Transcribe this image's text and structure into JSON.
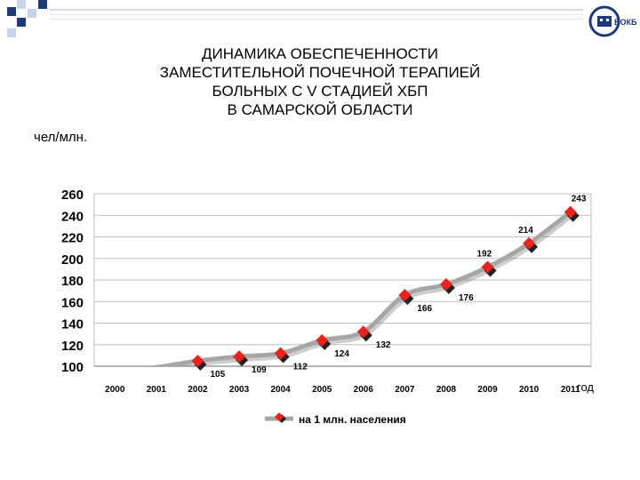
{
  "header": {
    "title_lines": [
      "ДИНАМИКА ОБЕСПЕЧЕННОСТИ",
      "ЗАМЕСТИТЕЛЬНОЙ ПОЧЕЧНОЙ ТЕРАПИЕЙ",
      "БОЛЬНЫХ С V СТАДИЕЙ ХБП",
      "В САМАРСКОЙ ОБЛАСТИ"
    ],
    "logo_text": "БОКБ"
  },
  "colors": {
    "line": "#a6a6a6",
    "marker": "#e8231d",
    "marker_shadow": "#222222",
    "grid": "#bfbfbf",
    "deco_blue": "#1f3a7a",
    "deco_light": "#c9d3ea"
  },
  "chart_data": {
    "type": "line",
    "title": "ДИНАМИКА ОБЕСПЕЧЕННОСТИ ЗАМЕСТИТЕЛЬНОЙ ПОЧЕЧНОЙ ТЕРАПИЕЙ БОЛЬНЫХ С V СТАДИЕЙ ХБП В САМАРСКОЙ ОБЛАСТИ",
    "ylabel": "чел/млн.",
    "xlabel": "год",
    "categories": [
      "2000",
      "2001",
      "2002",
      "2003",
      "2004",
      "2005",
      "2006",
      "2007",
      "2008",
      "2009",
      "2010",
      "2011"
    ],
    "ylim": [
      100,
      260
    ],
    "yticks": [
      100,
      120,
      140,
      160,
      180,
      200,
      220,
      240,
      260
    ],
    "grid": true,
    "legend_position": "bottom",
    "series": [
      {
        "name": "на 1 млн. населения",
        "values": [
          96,
          99,
          105,
          109,
          112,
          124,
          132,
          166,
          176,
          192,
          214,
          243
        ],
        "labels": [
          "",
          "",
          "105",
          "109",
          "112",
          "124",
          "132",
          "166",
          "176",
          "192",
          "214",
          "243"
        ]
      }
    ]
  }
}
